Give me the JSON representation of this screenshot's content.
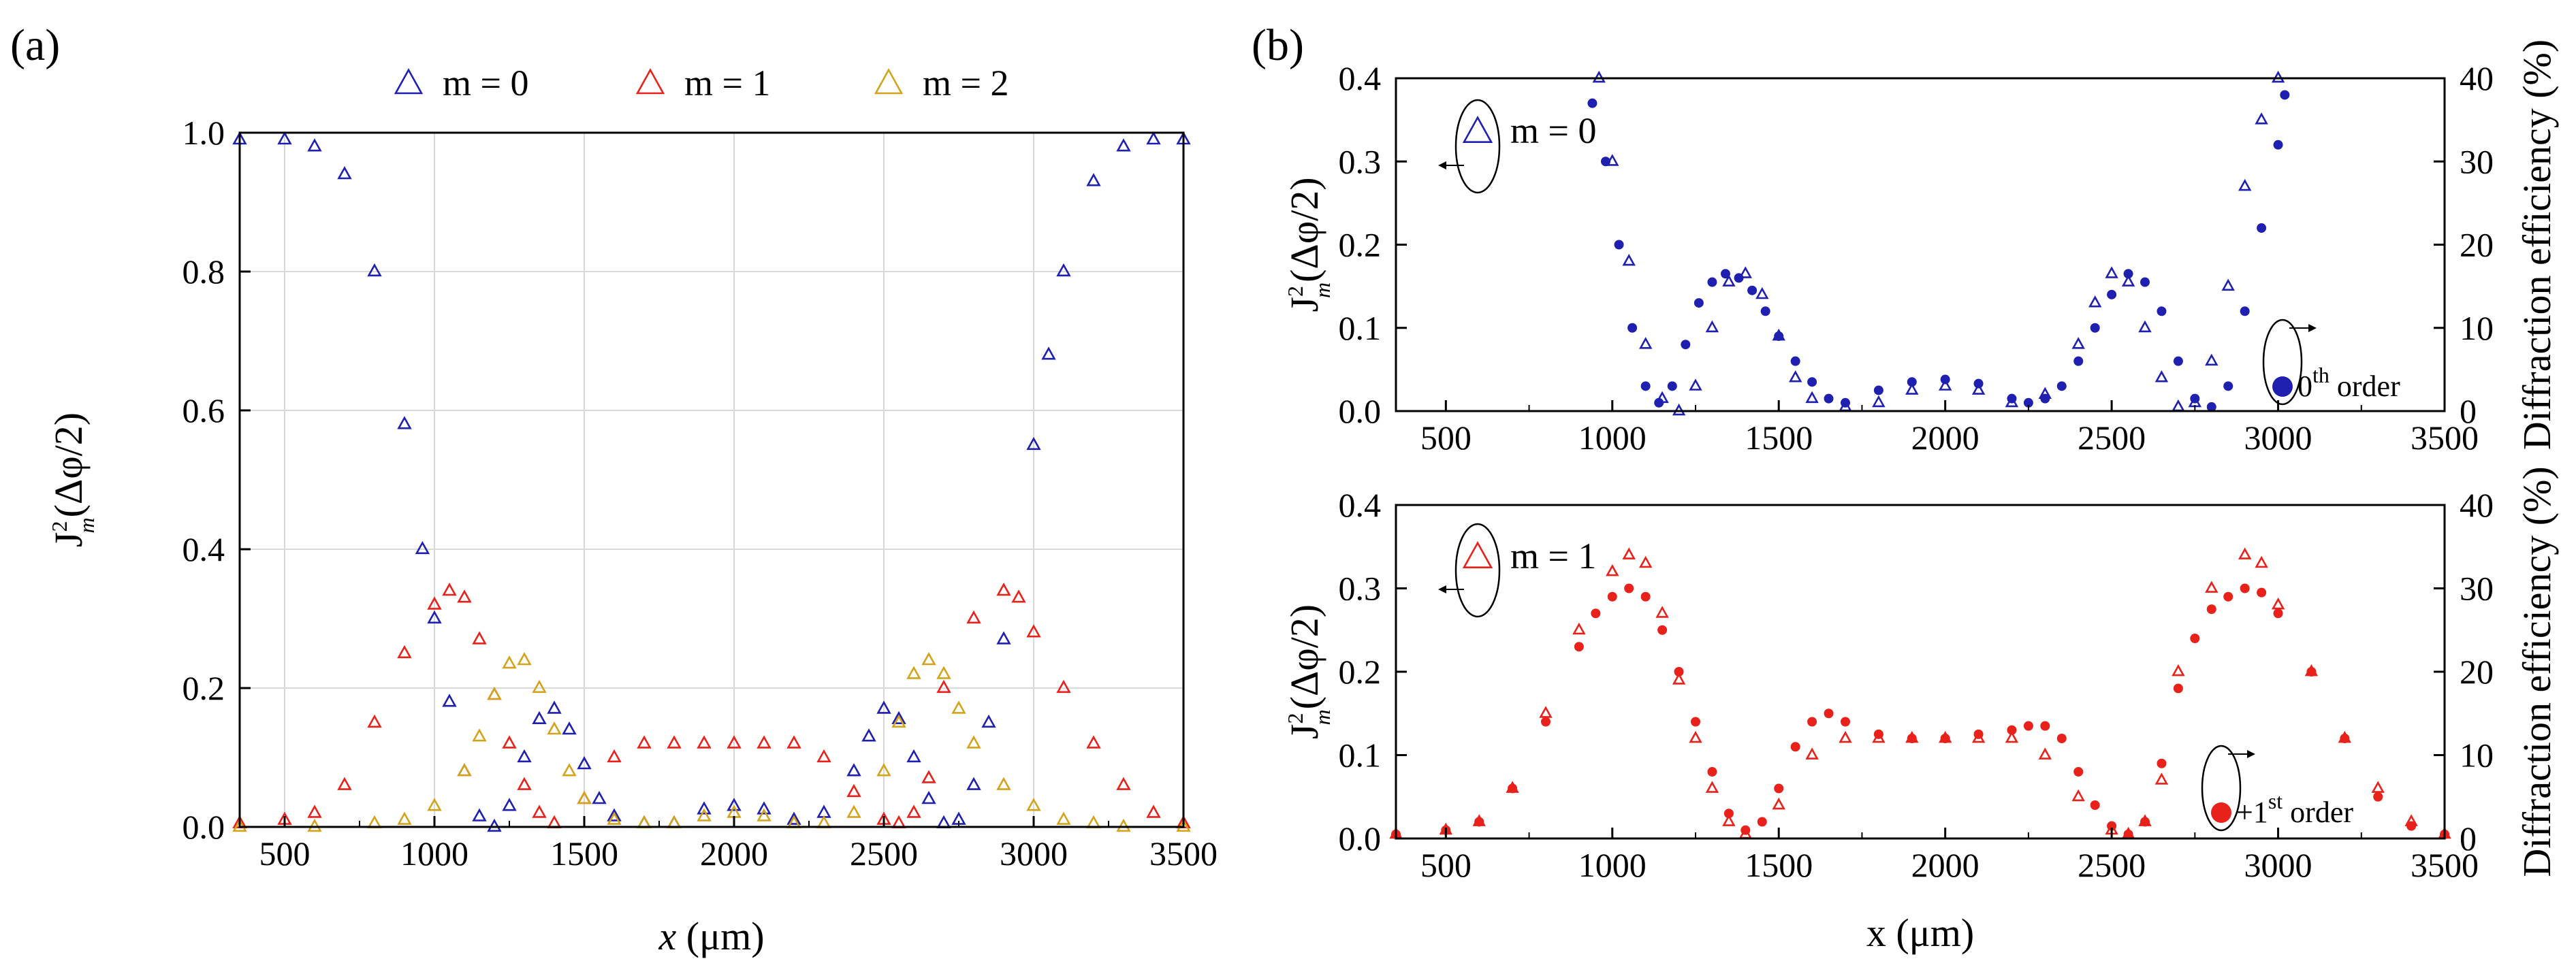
{
  "panel_labels": [
    "(a)",
    "(b)"
  ],
  "chart_data": [
    {
      "type": "scatter",
      "panel": "(a)",
      "title": "",
      "xlabel": "x (μm)",
      "ylabel": "J_m^2(Δφ/2)",
      "xlim": [
        350,
        3500
      ],
      "ylim": [
        0,
        1.0
      ],
      "xticks": [
        500,
        1000,
        1500,
        2000,
        2500,
        3000,
        3500
      ],
      "yticks": [
        0.0,
        0.2,
        0.4,
        0.6,
        0.8,
        1.0
      ],
      "xtick_labels": [
        "500",
        "1000",
        "1500",
        "2000",
        "2500",
        "3000",
        "3500"
      ],
      "ytick_labels": [
        "0.0",
        "0.2",
        "0.4",
        "0.6",
        "0.8",
        "1.0"
      ],
      "grid": true,
      "legend_position": "top-center",
      "legend": [
        "m = 0",
        "m = 1",
        "m = 2"
      ],
      "series": [
        {
          "name": "m = 0",
          "marker": "open-triangle",
          "color": "#1f1fb0",
          "x": [
            350,
            500,
            600,
            700,
            800,
            900,
            960,
            1000,
            1050,
            1100,
            1150,
            1200,
            1250,
            1300,
            1350,
            1400,
            1450,
            1500,
            1550,
            1600,
            1700,
            1800,
            1900,
            2000,
            2100,
            2200,
            2300,
            2400,
            2450,
            2500,
            2550,
            2600,
            2650,
            2700,
            2750,
            2800,
            2850,
            2900,
            3000,
            3050,
            3100,
            3200,
            3300,
            3400,
            3500
          ],
          "y": [
            0.99,
            0.99,
            0.98,
            0.94,
            0.8,
            0.58,
            0.4,
            0.3,
            0.18,
            0.08,
            0.015,
            0.0,
            0.03,
            0.1,
            0.155,
            0.17,
            0.14,
            0.09,
            0.04,
            0.015,
            0.005,
            0.005,
            0.025,
            0.03,
            0.025,
            0.01,
            0.02,
            0.08,
            0.13,
            0.17,
            0.155,
            0.1,
            0.04,
            0.005,
            0.01,
            0.06,
            0.15,
            0.27,
            0.55,
            0.68,
            0.8,
            0.93,
            0.98,
            0.99,
            0.99
          ]
        },
        {
          "name": "m = 1",
          "marker": "open-triangle",
          "color": "#e8211a",
          "x": [
            350,
            500,
            600,
            700,
            800,
            900,
            1000,
            1050,
            1100,
            1150,
            1200,
            1250,
            1300,
            1350,
            1400,
            1500,
            1600,
            1700,
            1800,
            1900,
            2000,
            2100,
            2200,
            2300,
            2400,
            2500,
            2550,
            2600,
            2650,
            2700,
            2800,
            2900,
            2950,
            3000,
            3100,
            3200,
            3300,
            3400,
            3500
          ],
          "y": [
            0.005,
            0.01,
            0.02,
            0.06,
            0.15,
            0.25,
            0.32,
            0.34,
            0.33,
            0.27,
            0.19,
            0.12,
            0.06,
            0.02,
            0.005,
            0.04,
            0.1,
            0.12,
            0.12,
            0.12,
            0.12,
            0.12,
            0.12,
            0.1,
            0.05,
            0.01,
            0.005,
            0.02,
            0.07,
            0.2,
            0.3,
            0.34,
            0.33,
            0.28,
            0.2,
            0.12,
            0.06,
            0.02,
            0.005
          ]
        },
        {
          "name": "m = 2",
          "marker": "open-triangle",
          "color": "#d4a31c",
          "x": [
            350,
            600,
            800,
            900,
            1000,
            1100,
            1150,
            1200,
            1250,
            1300,
            1350,
            1400,
            1450,
            1500,
            1600,
            1700,
            1800,
            1900,
            2000,
            2100,
            2200,
            2300,
            2400,
            2500,
            2550,
            2600,
            2650,
            2700,
            2750,
            2800,
            2900,
            3000,
            3100,
            3200,
            3300,
            3500
          ],
          "y": [
            0.0,
            0.0,
            0.005,
            0.01,
            0.03,
            0.08,
            0.13,
            0.19,
            0.235,
            0.24,
            0.2,
            0.14,
            0.08,
            0.04,
            0.01,
            0.005,
            0.005,
            0.015,
            0.02,
            0.015,
            0.005,
            0.005,
            0.02,
            0.08,
            0.15,
            0.22,
            0.24,
            0.22,
            0.17,
            0.12,
            0.06,
            0.03,
            0.01,
            0.005,
            0.0,
            0.0
          ]
        }
      ]
    },
    {
      "type": "scatter",
      "panel": "(b) top",
      "title": "",
      "xlabel": "",
      "ylabel": "J_m^2(Δφ/2)",
      "y2label": "Diffraction efficiency (%)",
      "xlim": [
        350,
        3500
      ],
      "ylim": [
        0,
        0.4
      ],
      "y2lim": [
        0,
        40
      ],
      "xticks": [
        500,
        1000,
        1500,
        2000,
        2500,
        3000,
        3500
      ],
      "yticks": [
        0.0,
        0.1,
        0.2,
        0.3,
        0.4
      ],
      "y2ticks": [
        0,
        10,
        20,
        30,
        40
      ],
      "xtick_labels": [
        "500",
        "1000",
        "1500",
        "2000",
        "2500",
        "3000",
        "3500"
      ],
      "ytick_labels": [
        "0.0",
        "0.1",
        "0.2",
        "0.3",
        "0.4"
      ],
      "y2tick_labels": [
        "0",
        "10",
        "20",
        "30",
        "40"
      ],
      "grid": false,
      "legend": [
        "m = 0"
      ],
      "annotation": "0th order",
      "series": [
        {
          "name": "m = 0",
          "marker": "open-triangle",
          "axis": "left",
          "color": "#1f1fb0",
          "x": [
            960,
            1000,
            1050,
            1100,
            1150,
            1200,
            1250,
            1300,
            1350,
            1400,
            1450,
            1500,
            1550,
            1600,
            1700,
            1800,
            1900,
            2000,
            2100,
            2200,
            2300,
            2400,
            2450,
            2500,
            2550,
            2600,
            2650,
            2700,
            2750,
            2800,
            2850,
            2900,
            2950,
            3000
          ],
          "y": [
            0.4,
            0.3,
            0.18,
            0.08,
            0.015,
            0.0,
            0.03,
            0.1,
            0.155,
            0.165,
            0.14,
            0.09,
            0.04,
            0.015,
            0.005,
            0.01,
            0.025,
            0.03,
            0.025,
            0.01,
            0.02,
            0.08,
            0.13,
            0.165,
            0.155,
            0.1,
            0.04,
            0.005,
            0.01,
            0.06,
            0.15,
            0.27,
            0.35,
            0.4
          ]
        },
        {
          "name": "0th order",
          "marker": "filled-circle",
          "axis": "right",
          "color": "#1f1fb0",
          "x": [
            940,
            980,
            1020,
            1060,
            1100,
            1140,
            1180,
            1220,
            1260,
            1300,
            1340,
            1380,
            1420,
            1460,
            1500,
            1550,
            1600,
            1650,
            1700,
            1800,
            1900,
            2000,
            2100,
            2200,
            2250,
            2300,
            2350,
            2400,
            2450,
            2500,
            2550,
            2600,
            2650,
            2700,
            2750,
            2800,
            2850,
            2900,
            2950,
            3000,
            3020
          ],
          "y": [
            37,
            30,
            20,
            10,
            3,
            1,
            3,
            8,
            13,
            15.5,
            16.5,
            16,
            14.5,
            12,
            9,
            6,
            3.5,
            1.5,
            1,
            2.5,
            3.5,
            3.8,
            3.3,
            1.5,
            1,
            1.5,
            3,
            6,
            10,
            14,
            16.5,
            15.5,
            12,
            6,
            1.5,
            0.5,
            3,
            12,
            22,
            32,
            38
          ]
        }
      ]
    },
    {
      "type": "scatter",
      "panel": "(b) bottom",
      "title": "",
      "xlabel": "x (μm)",
      "ylabel": "J_m^2(Δφ/2)",
      "y2label": "Diffraction efficiency (%)",
      "xlim": [
        350,
        3500
      ],
      "ylim": [
        0,
        0.4
      ],
      "y2lim": [
        0,
        40
      ],
      "xticks": [
        500,
        1000,
        1500,
        2000,
        2500,
        3000,
        3500
      ],
      "yticks": [
        0.0,
        0.1,
        0.2,
        0.3,
        0.4
      ],
      "y2ticks": [
        0,
        10,
        20,
        30,
        40
      ],
      "xtick_labels": [
        "500",
        "1000",
        "1500",
        "2000",
        "2500",
        "3000",
        "3500"
      ],
      "ytick_labels": [
        "0.0",
        "0.1",
        "0.2",
        "0.3",
        "0.4"
      ],
      "y2tick_labels": [
        "0",
        "10",
        "20",
        "30",
        "40"
      ],
      "grid": false,
      "legend": [
        "m = 1"
      ],
      "annotation": "+1st order",
      "series": [
        {
          "name": "m = 1",
          "marker": "open-triangle",
          "axis": "left",
          "color": "#e8211a",
          "x": [
            350,
            500,
            600,
            700,
            800,
            900,
            1000,
            1050,
            1100,
            1150,
            1200,
            1250,
            1300,
            1350,
            1400,
            1500,
            1600,
            1700,
            1800,
            1900,
            2000,
            2100,
            2200,
            2300,
            2400,
            2500,
            2550,
            2600,
            2650,
            2700,
            2800,
            2900,
            2950,
            3000,
            3100,
            3200,
            3300,
            3400,
            3500
          ],
          "y": [
            0.005,
            0.01,
            0.02,
            0.06,
            0.15,
            0.25,
            0.32,
            0.34,
            0.33,
            0.27,
            0.19,
            0.12,
            0.06,
            0.02,
            0.005,
            0.04,
            0.1,
            0.12,
            0.12,
            0.12,
            0.12,
            0.12,
            0.12,
            0.1,
            0.05,
            0.01,
            0.005,
            0.02,
            0.07,
            0.2,
            0.3,
            0.34,
            0.33,
            0.28,
            0.2,
            0.12,
            0.06,
            0.02,
            0.005
          ]
        },
        {
          "name": "+1st order",
          "marker": "filled-circle",
          "axis": "right",
          "color": "#e8211a",
          "x": [
            350,
            500,
            600,
            700,
            800,
            900,
            950,
            1000,
            1050,
            1100,
            1150,
            1200,
            1250,
            1300,
            1350,
            1400,
            1450,
            1500,
            1550,
            1600,
            1650,
            1700,
            1800,
            1900,
            2000,
            2100,
            2200,
            2250,
            2300,
            2350,
            2400,
            2450,
            2500,
            2550,
            2600,
            2650,
            2700,
            2750,
            2800,
            2850,
            2900,
            2950,
            3000,
            3100,
            3200,
            3300,
            3400,
            3500
          ],
          "y": [
            0.5,
            1,
            2,
            6,
            14,
            23,
            27,
            29,
            30,
            29,
            25,
            20,
            14,
            8,
            3,
            1,
            2,
            6,
            11,
            14,
            15,
            14,
            12.5,
            12,
            12,
            12.5,
            13,
            13.5,
            13.5,
            12,
            8,
            4,
            1.5,
            0.5,
            2,
            9,
            18,
            24,
            27.5,
            29,
            30,
            29.5,
            27,
            20,
            12,
            5,
            1.5,
            0.5
          ]
        }
      ]
    }
  ]
}
